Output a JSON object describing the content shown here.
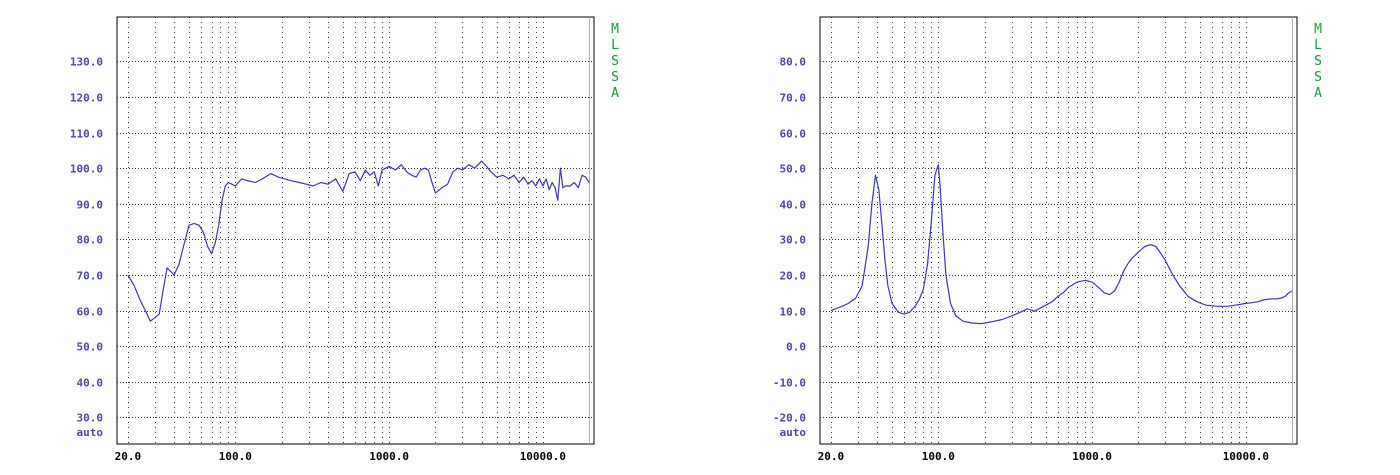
{
  "chart_data": [
    {
      "type": "line",
      "x_scale": "log",
      "xlim": [
        17,
        21500
      ],
      "ylim": [
        22.5,
        142.5
      ],
      "y_ticks": [
        130,
        120,
        110,
        100,
        90,
        80,
        70,
        60,
        50,
        40,
        30
      ],
      "y_tick_labels": [
        "130.0",
        "120.0",
        "110.0",
        "100.0",
        "90.0",
        "80.0",
        "70.0",
        "60.0",
        "50.0",
        "40.0",
        "30.0"
      ],
      "y_bottom_label": "auto",
      "x_ticks": [
        20,
        100,
        1000,
        10000
      ],
      "x_tick_labels": [
        "20.0",
        "100.0",
        "1000.0",
        "10000.0"
      ],
      "side_text": [
        "M",
        "L",
        "S",
        "S",
        "A"
      ],
      "grid": true,
      "series": [
        {
          "color": "#3a3aa6",
          "x": [
            20,
            22,
            24,
            26,
            28,
            30,
            32,
            34,
            36,
            38,
            40,
            43,
            46,
            50,
            54,
            58,
            62,
            66,
            70,
            74,
            78,
            82,
            86,
            90,
            95,
            100,
            110,
            120,
            135,
            150,
            170,
            190,
            210,
            230,
            260,
            290,
            320,
            360,
            400,
            450,
            500,
            550,
            600,
            650,
            700,
            750,
            800,
            850,
            900,
            950,
            1000,
            1100,
            1200,
            1300,
            1400,
            1500,
            1600,
            1700,
            1800,
            1900,
            2000,
            2200,
            2400,
            2600,
            2800,
            3000,
            3300,
            3600,
            4000,
            4300,
            4600,
            5000,
            5500,
            6000,
            6500,
            7000,
            7500,
            8000,
            8500,
            9000,
            9500,
            10000,
            10500,
            11000,
            11500,
            12000,
            12500,
            13000,
            13500,
            14000,
            15000,
            16000,
            17000,
            18000,
            19000,
            20000
          ],
          "y": [
            70,
            67,
            63,
            60,
            57,
            58,
            59,
            66,
            72,
            71,
            70,
            73,
            78,
            84,
            84.5,
            84,
            82,
            78,
            76,
            79,
            84,
            91,
            95,
            96,
            95.5,
            95,
            97,
            96.5,
            96,
            97,
            98.5,
            97.5,
            97,
            96.5,
            96,
            95.5,
            95,
            96,
            95.5,
            97,
            93.5,
            98.5,
            99,
            96.5,
            99.5,
            98,
            99,
            95,
            99.5,
            100,
            100.5,
            99.5,
            101,
            99,
            98,
            97.5,
            99.5,
            100,
            99.5,
            96,
            93,
            94.5,
            95.5,
            99,
            100,
            99.5,
            101,
            100,
            102,
            100.5,
            99,
            97.5,
            98,
            97,
            98,
            96,
            97.5,
            95.5,
            96.5,
            95,
            97,
            95,
            97,
            94,
            96,
            94.5,
            91,
            100,
            94.5,
            95,
            95,
            96,
            94.5,
            98,
            97.5,
            96
          ]
        }
      ]
    },
    {
      "type": "line",
      "x_scale": "log",
      "xlim": [
        17,
        21500
      ],
      "ylim": [
        -27.5,
        92.5
      ],
      "y_ticks": [
        80,
        70,
        60,
        50,
        40,
        30,
        20,
        10,
        0,
        -10,
        -20
      ],
      "y_tick_labels": [
        "80.0",
        "70.0",
        "60.0",
        "50.0",
        "40.0",
        "30.0",
        "20.0",
        "10.0",
        "0.0",
        "-10.0",
        "-20.0"
      ],
      "y_bottom_label": "auto",
      "x_ticks": [
        20,
        100,
        1000,
        10000
      ],
      "x_tick_labels": [
        "20.0",
        "100.0",
        "1000.0",
        "10000.0"
      ],
      "side_text": [
        "M",
        "L",
        "S",
        "S",
        "A"
      ],
      "grid": true,
      "series": [
        {
          "color": "#3a3aa6",
          "x": [
            20,
            23,
            26,
            29,
            32,
            35,
            37,
            39,
            41,
            43,
            45,
            47,
            50,
            55,
            60,
            65,
            70,
            75,
            80,
            85,
            90,
            95,
            100,
            103,
            107,
            112,
            120,
            130,
            145,
            165,
            190,
            220,
            260,
            300,
            340,
            380,
            400,
            420,
            450,
            500,
            550,
            600,
            650,
            700,
            800,
            900,
            1000,
            1100,
            1200,
            1300,
            1400,
            1500,
            1600,
            1700,
            1800,
            1900,
            2000,
            2200,
            2400,
            2600,
            2800,
            3000,
            3300,
            3700,
            4200,
            4800,
            5500,
            6500,
            7500,
            8500,
            10000,
            11000,
            12000,
            13000,
            14000,
            15000,
            16000,
            17000,
            18000,
            19000,
            20000
          ],
          "y": [
            10,
            11,
            12,
            13.5,
            17,
            28,
            40,
            48,
            44,
            34,
            24,
            17,
            12,
            9.5,
            9,
            9.5,
            11,
            13,
            16,
            23,
            35,
            48,
            51,
            44,
            32,
            20,
            12,
            8.5,
            7,
            6.5,
            6.3,
            6.8,
            7.5,
            8.5,
            9.5,
            10.5,
            10.2,
            9.8,
            10.5,
            11.5,
            12.5,
            14,
            15,
            16.5,
            18,
            18.5,
            18,
            16.5,
            15,
            14.5,
            15.5,
            18,
            21,
            23,
            24.5,
            25.5,
            26.5,
            28,
            28.5,
            28,
            26,
            24,
            20.5,
            17,
            14,
            12.5,
            11.5,
            11.2,
            11.2,
            11.5,
            12,
            12.2,
            12.5,
            13,
            13.2,
            13.3,
            13.3,
            13.5,
            14,
            15,
            15.5
          ]
        }
      ]
    }
  ]
}
